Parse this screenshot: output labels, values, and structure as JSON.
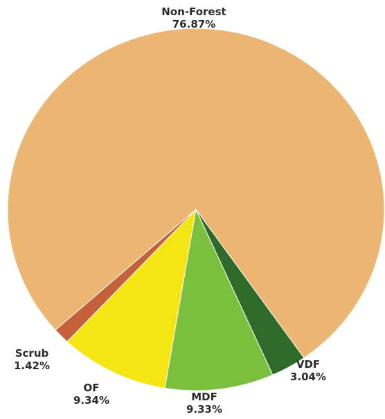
{
  "chart_data": {
    "type": "pie",
    "categories": [
      "Non-Forest",
      "VDF",
      "MDF",
      "OF",
      "Scrub"
    ],
    "values": [
      76.87,
      3.04,
      9.33,
      9.34,
      1.42
    ],
    "value_labels": [
      "76.87%",
      "3.04%",
      "9.33%",
      "9.34%",
      "1.42%"
    ],
    "colors": [
      "#EBB672",
      "#2E6B2A",
      "#7BBF3F",
      "#F5E512",
      "#C4613A"
    ],
    "title": "",
    "legend": "none"
  }
}
